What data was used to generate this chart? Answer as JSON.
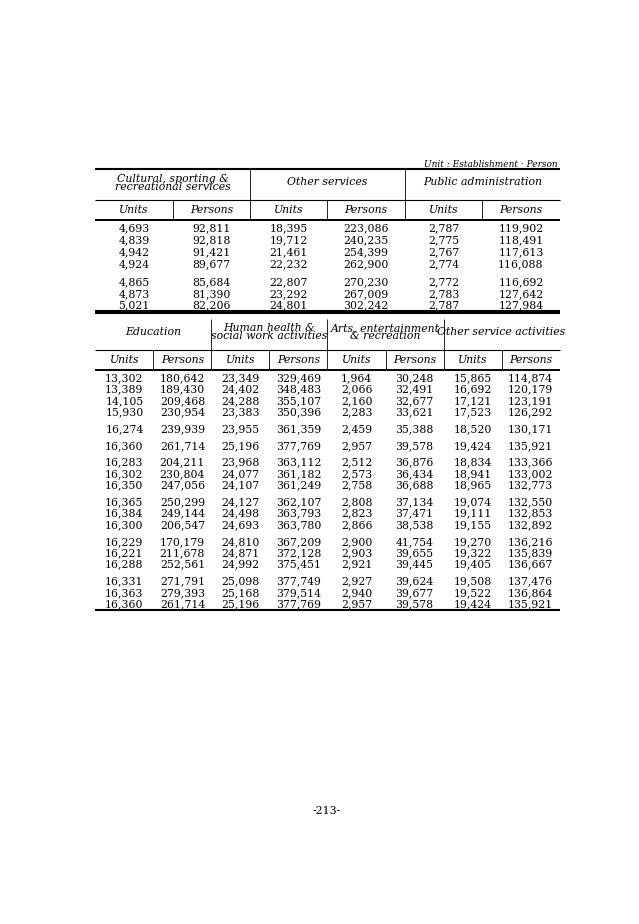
{
  "unit_label": "Unit : Establishment · Person",
  "page_number": "-213-",
  "top_section": {
    "col_groups": [
      {
        "label": "Cultural, sporting &\nrecreational services",
        "span": 2
      },
      {
        "label": "Other services",
        "span": 2
      },
      {
        "label": "Public administration",
        "span": 2
      }
    ],
    "sub_headers": [
      "Units",
      "Persons",
      "Units",
      "Persons",
      "Units",
      "Persons"
    ],
    "rows": [
      [
        "4,693",
        "92,811",
        "18,395",
        "223,086",
        "2,787",
        "119,902"
      ],
      [
        "4,839",
        "92,818",
        "19,712",
        "240,235",
        "2,775",
        "118,491"
      ],
      [
        "4,942",
        "91,421",
        "21,461",
        "254,399",
        "2,767",
        "117,613"
      ],
      [
        "4,924",
        "89,677",
        "22,232",
        "262,900",
        "2,774",
        "116,088"
      ],
      [],
      [
        "4,865",
        "85,684",
        "22,807",
        "270,230",
        "2,772",
        "116,692"
      ],
      [
        "4,873",
        "81,390",
        "23,292",
        "267,009",
        "2,783",
        "127,642"
      ],
      [
        "5,021",
        "82,206",
        "24,801",
        "302,242",
        "2,787",
        "127,984"
      ]
    ]
  },
  "bottom_section": {
    "col_groups": [
      {
        "label": "Education",
        "span": 2
      },
      {
        "label": "Human health &\nsocial work activities",
        "span": 2
      },
      {
        "label": "Arts, entertainment\n& recreation",
        "span": 2
      },
      {
        "label": "Other service activities",
        "span": 2
      }
    ],
    "sub_headers": [
      "Units",
      "Persons",
      "Units",
      "Persons",
      "Units",
      "Persons",
      "Units",
      "Persons"
    ],
    "rows": [
      [
        "13,302",
        "180,642",
        "23,349",
        "329,469",
        "1,964",
        "30,248",
        "15,865",
        "114,874"
      ],
      [
        "13,389",
        "189,430",
        "24,402",
        "348,483",
        "2,066",
        "32,491",
        "16,692",
        "120,179"
      ],
      [
        "14,105",
        "209,468",
        "24,288",
        "355,107",
        "2,160",
        "32,677",
        "17,121",
        "123,191"
      ],
      [
        "15,930",
        "230,954",
        "23,383",
        "350,396",
        "2,283",
        "33,621",
        "17,523",
        "126,292"
      ],
      [],
      [
        "16,274",
        "239,939",
        "23,955",
        "361,359",
        "2,459",
        "35,388",
        "18,520",
        "130,171"
      ],
      [],
      [
        "16,360",
        "261,714",
        "25,196",
        "377,769",
        "2,957",
        "39,578",
        "19,424",
        "135,921"
      ],
      [],
      [
        "16,283",
        "204,211",
        "23,968",
        "363,112",
        "2,512",
        "36,876",
        "18,834",
        "133,366"
      ],
      [
        "16,302",
        "230,804",
        "24,077",
        "361,182",
        "2,573",
        "36,434",
        "18,941",
        "133,002"
      ],
      [
        "16,350",
        "247,056",
        "24,107",
        "361,249",
        "2,758",
        "36,688",
        "18,965",
        "132,773"
      ],
      [],
      [
        "16,365",
        "250,299",
        "24,127",
        "362,107",
        "2,808",
        "37,134",
        "19,074",
        "132,550"
      ],
      [
        "16,384",
        "249,144",
        "24,498",
        "363,793",
        "2,823",
        "37,471",
        "19,111",
        "132,853"
      ],
      [
        "16,300",
        "206,547",
        "24,693",
        "363,780",
        "2,866",
        "38,538",
        "19,155",
        "132,892"
      ],
      [],
      [
        "16,229",
        "170,179",
        "24,810",
        "367,209",
        "2,900",
        "41,754",
        "19,270",
        "136,216"
      ],
      [
        "16,221",
        "211,678",
        "24,871",
        "372,128",
        "2,903",
        "39,655",
        "19,322",
        "135,839"
      ],
      [
        "16,288",
        "252,561",
        "24,992",
        "375,451",
        "2,921",
        "39,445",
        "19,405",
        "136,667"
      ],
      [],
      [
        "16,331",
        "271,791",
        "25,098",
        "377,749",
        "2,927",
        "39,624",
        "19,508",
        "137,476"
      ],
      [
        "16,363",
        "279,393",
        "25,168",
        "379,514",
        "2,940",
        "39,677",
        "19,522",
        "136,864"
      ],
      [
        "16,360",
        "261,714",
        "25,196",
        "377,769",
        "2,957",
        "39,578",
        "19,424",
        "135,921"
      ]
    ]
  }
}
